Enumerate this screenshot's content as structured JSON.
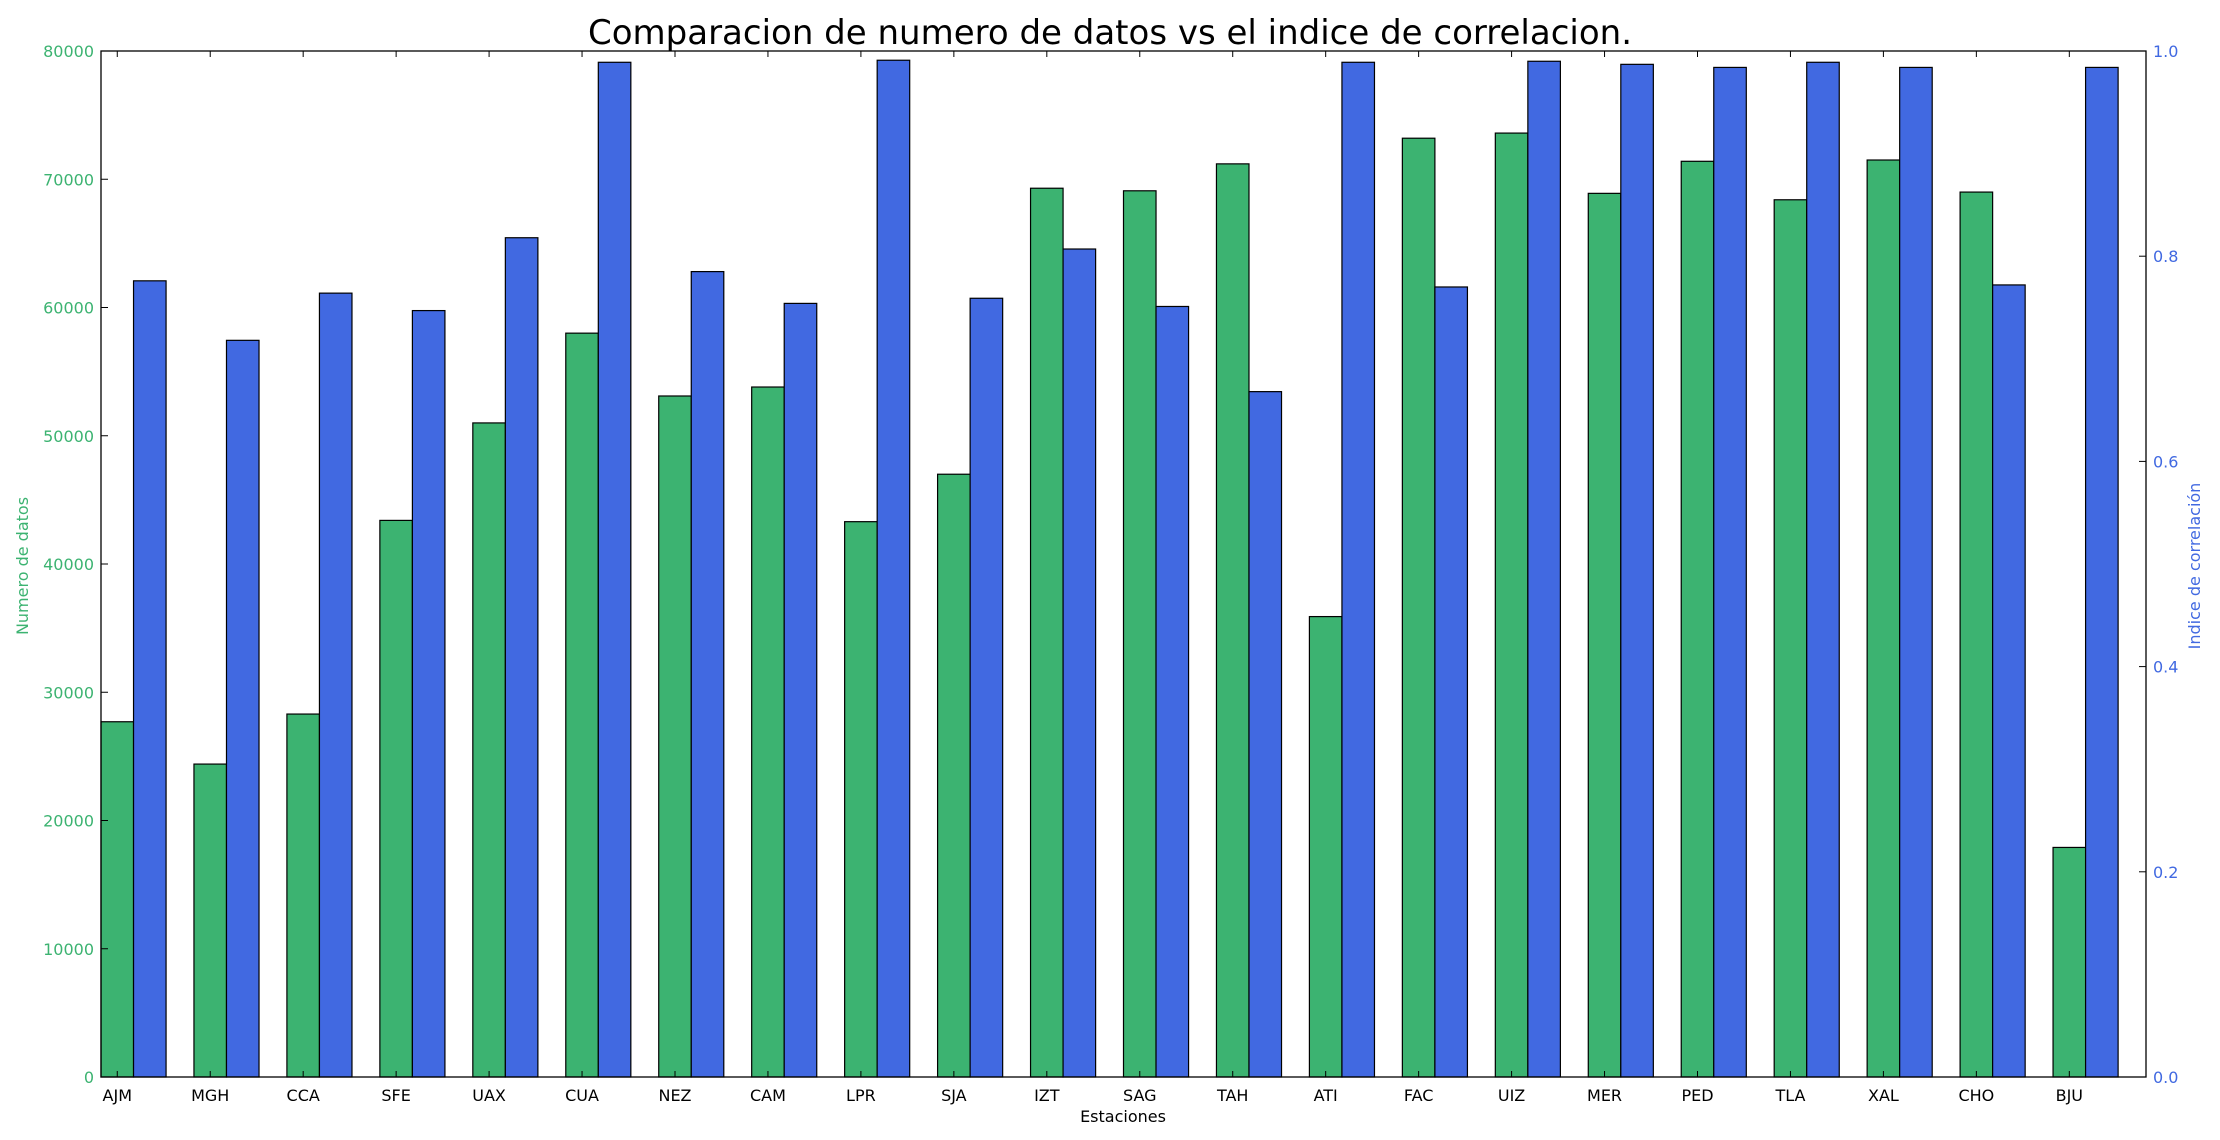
{
  "chart_data": {
    "type": "bar",
    "title": "Comparacion de numero de datos vs el indice de correlacion.",
    "xlabel": "Estaciones",
    "ylabel_left": "Numero de datos",
    "ylabel_right": "Indice de correlación",
    "categories": [
      "AJM",
      "MGH",
      "CCA",
      "SFE",
      "UAX",
      "CUA",
      "NEZ",
      "CAM",
      "LPR",
      "SJA",
      "IZT",
      "SAG",
      "TAH",
      "ATI",
      "FAC",
      "UIZ",
      "MER",
      "PED",
      "TLA",
      "XAL",
      "CHO",
      "BJU"
    ],
    "series": [
      {
        "name": "Numero de datos",
        "axis": "left",
        "color": "#3cb371",
        "values": [
          27700,
          24400,
          28300,
          43400,
          51000,
          58000,
          53100,
          53800,
          43300,
          47000,
          69300,
          69100,
          71200,
          35900,
          73200,
          73600,
          68900,
          71400,
          68400,
          71500,
          69000,
          17900
        ]
      },
      {
        "name": "Indice de correlación",
        "axis": "right",
        "color": "#4169e1",
        "values": [
          0.776,
          0.718,
          0.764,
          0.747,
          0.818,
          0.989,
          0.785,
          0.754,
          0.991,
          0.759,
          0.807,
          0.751,
          0.668,
          0.989,
          0.77,
          0.99,
          0.987,
          0.984,
          0.989,
          0.984,
          0.772,
          0.984
        ]
      }
    ],
    "ylim_left": [
      0,
      80000
    ],
    "ylim_right": [
      0,
      1.0
    ],
    "yticks_left": [
      "0",
      "10000",
      "20000",
      "30000",
      "40000",
      "50000",
      "60000",
      "70000",
      "80000"
    ],
    "yticks_right": [
      "0.0",
      "0.2",
      "0.4",
      "0.6",
      "0.8",
      "1.0"
    ],
    "grid": false,
    "legend": "none"
  }
}
